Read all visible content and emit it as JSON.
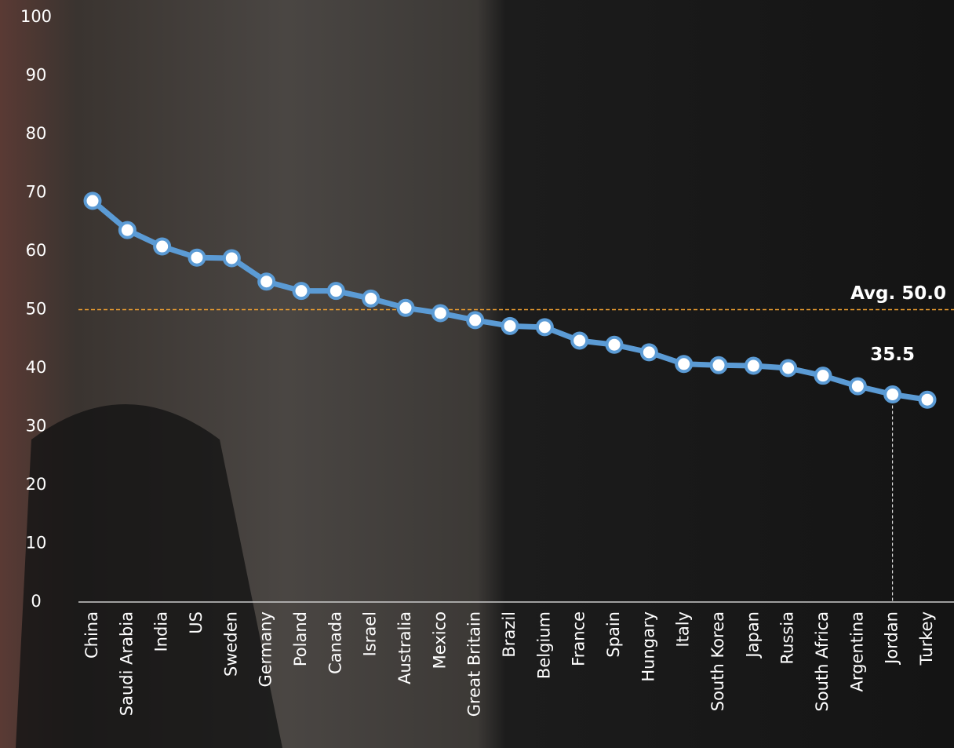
{
  "chart_data": {
    "type": "line",
    "categories": [
      "China",
      "Saudi Arabia",
      "India",
      "US",
      "Sweden",
      "Germany",
      "Poland",
      "Canada",
      "Israel",
      "Australia",
      "Mexico",
      "Great Britain",
      "Brazil",
      "Belgium",
      "France",
      "Spain",
      "Hungary",
      "Italy",
      "South Korea",
      "Japan",
      "Russia",
      "South Africa",
      "Argentina",
      "Jordan",
      "Turkey"
    ],
    "series": [
      {
        "color": "#5b9bd5",
        "values": [
          68.6,
          63.6,
          60.8,
          58.9,
          58.8,
          54.8,
          53.2,
          53.2,
          51.9,
          50.3,
          49.4,
          48.2,
          47.2,
          47.0,
          44.7,
          44.0,
          42.7,
          40.7,
          40.5,
          40.4,
          40.0,
          38.7,
          36.9,
          35.5,
          34.6
        ]
      }
    ],
    "ylim": [
      0,
      100
    ],
    "yticks": [
      0,
      10,
      20,
      30,
      40,
      50,
      60,
      70,
      80,
      90,
      100
    ],
    "reference_line": {
      "value": 50,
      "label": "Avg. 50.0",
      "color": "#f0a030"
    },
    "highlight_index": 23
  }
}
